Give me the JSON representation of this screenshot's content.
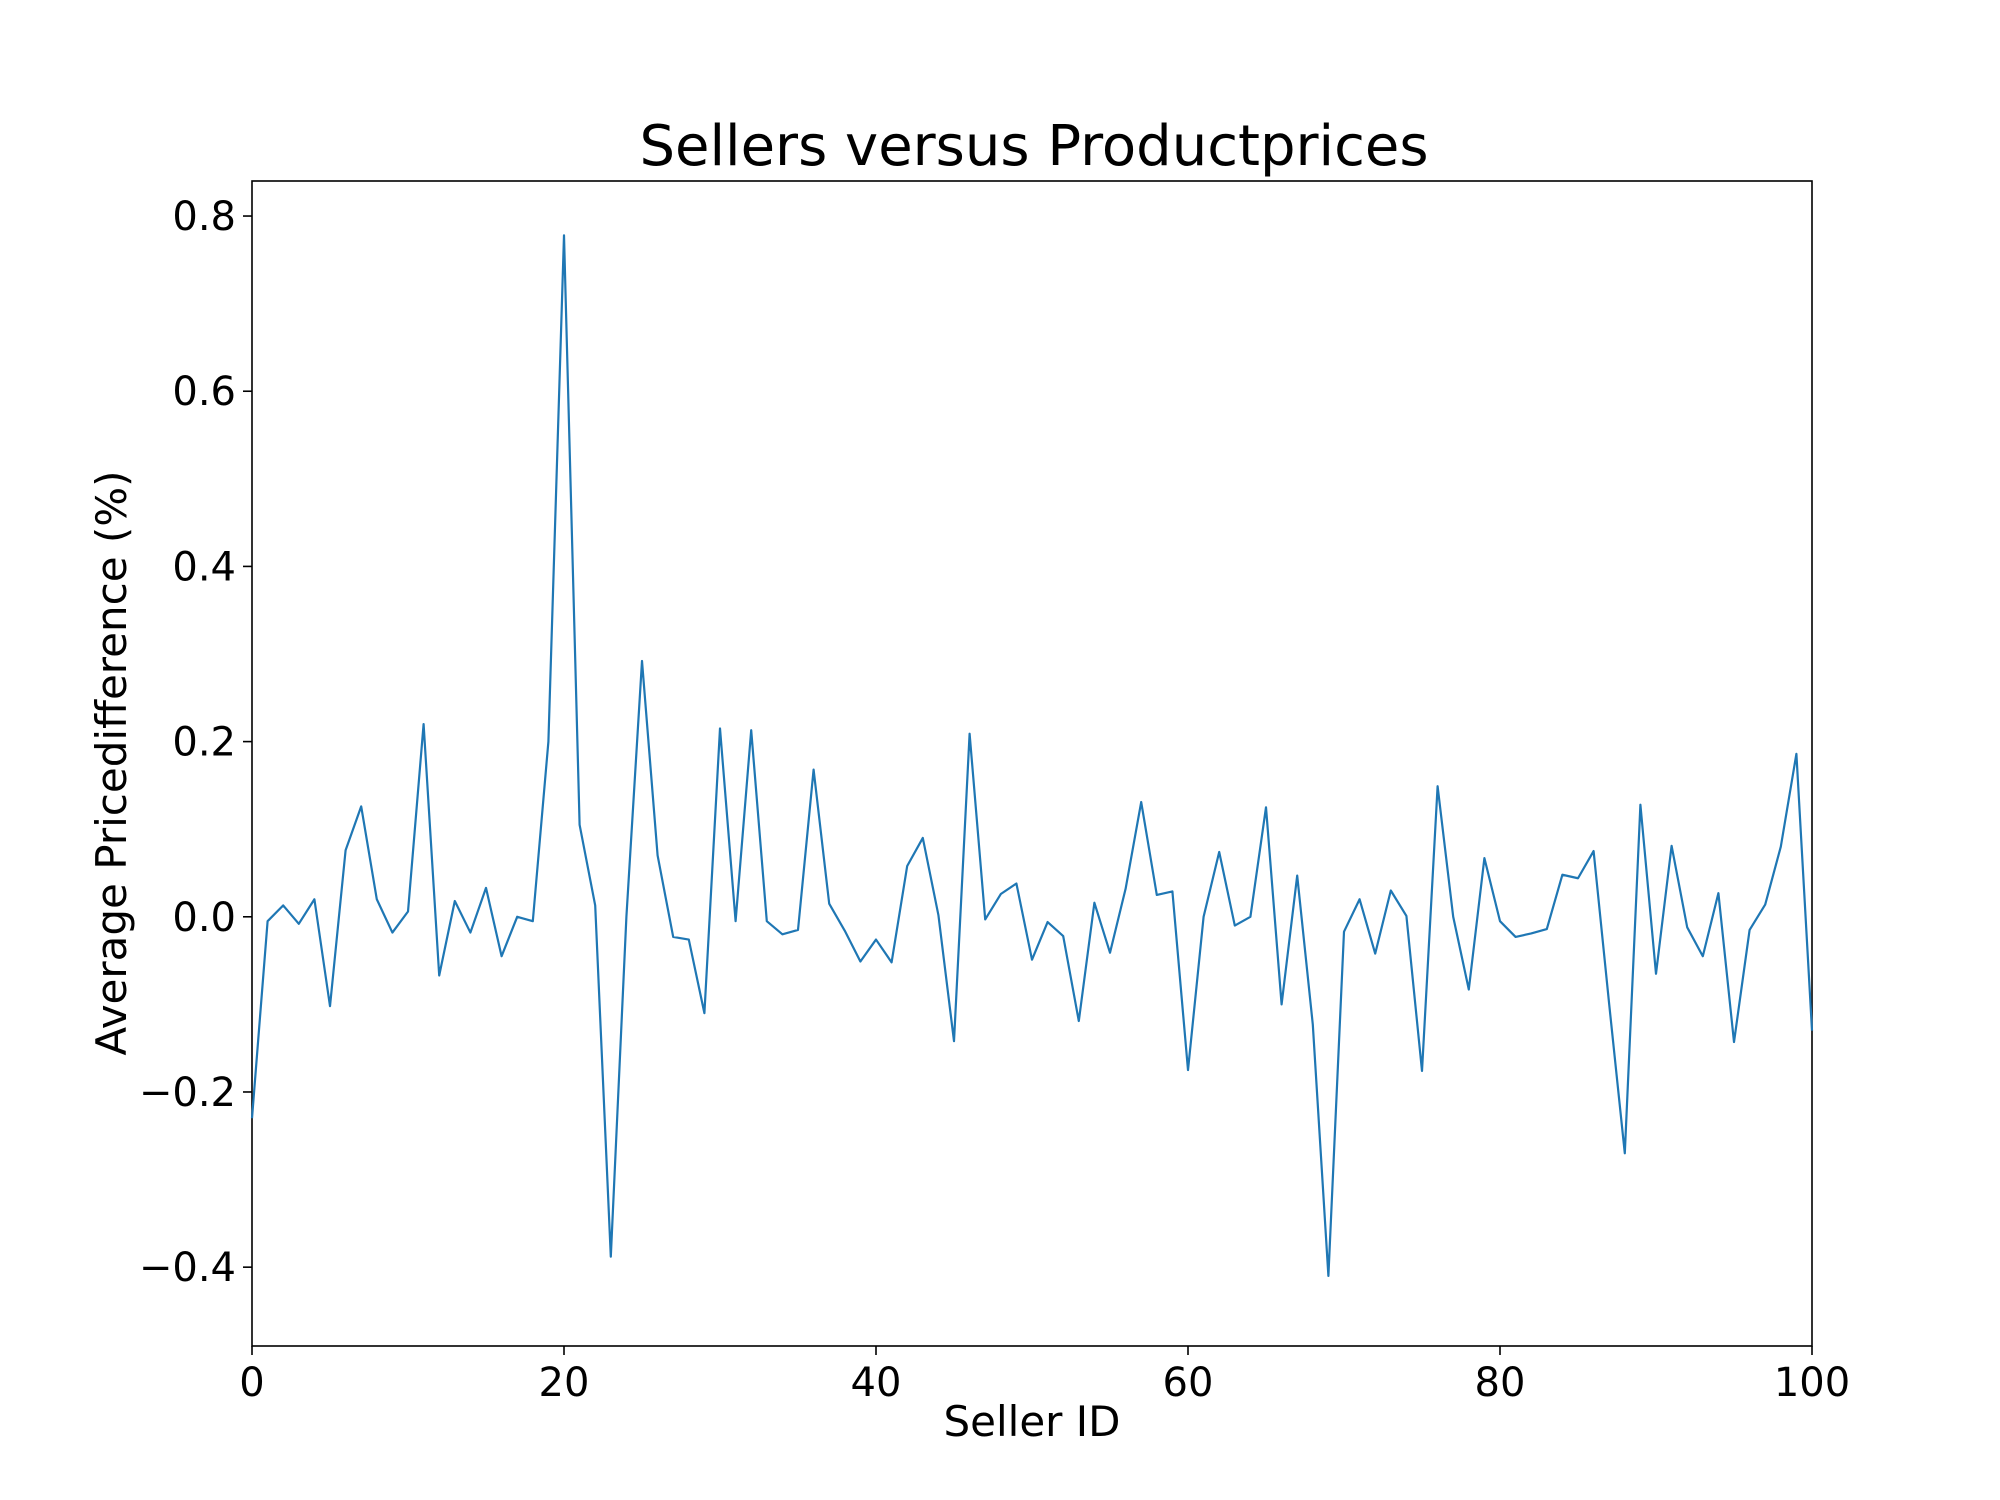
{
  "chart_data": {
    "type": "line",
    "title": "Sellers versus Productprices",
    "xlabel": "Seller ID",
    "ylabel": "Average Pricedifference (%)",
    "xlim": [
      0,
      100
    ],
    "ylim": [
      -0.49,
      0.84
    ],
    "xticks": [
      0,
      20,
      40,
      60,
      80,
      100
    ],
    "xtick_labels": [
      "0",
      "20",
      "40",
      "60",
      "80",
      "100"
    ],
    "yticks": [
      -0.4,
      -0.2,
      0.0,
      0.2,
      0.4,
      0.6,
      0.8
    ],
    "ytick_labels": [
      "−0.4",
      "−0.2",
      "0.0",
      "0.2",
      "0.4",
      "0.6",
      "0.8"
    ],
    "grid": false,
    "series": [
      {
        "color": "#1f77b4",
        "x": [
          0,
          1,
          2,
          3,
          4,
          5,
          6,
          7,
          8,
          9,
          10,
          11,
          12,
          13,
          14,
          15,
          16,
          17,
          18,
          19,
          20,
          21,
          22,
          23,
          24,
          25,
          26,
          27,
          28,
          29,
          30,
          31,
          32,
          33,
          34,
          35,
          36,
          37,
          38,
          39,
          40,
          41,
          42,
          43,
          44,
          45,
          46,
          47,
          48,
          49,
          50,
          51,
          52,
          53,
          54,
          55,
          56,
          57,
          58,
          59,
          60,
          61,
          62,
          63,
          64,
          65,
          66,
          67,
          68,
          69,
          70,
          71,
          72,
          73,
          74,
          75,
          76,
          77,
          78,
          79,
          80,
          81,
          82,
          83,
          84,
          85,
          86,
          87,
          88,
          89,
          90,
          91,
          92,
          93,
          94,
          95,
          96,
          97,
          98,
          99,
          100
        ],
        "y": [
          -0.23,
          -0.005,
          0.013,
          -0.008,
          0.02,
          -0.102,
          0.076,
          0.126,
          0.02,
          -0.018,
          0.006,
          0.22,
          -0.067,
          0.018,
          -0.018,
          0.033,
          -0.045,
          0.0,
          -0.005,
          0.2,
          0.778,
          0.105,
          0.013,
          -0.388,
          0.0,
          0.292,
          0.07,
          -0.023,
          -0.026,
          -0.11,
          0.215,
          -0.005,
          0.213,
          -0.005,
          -0.02,
          -0.015,
          0.168,
          0.015,
          -0.016,
          -0.051,
          -0.026,
          -0.052,
          0.058,
          0.09,
          0.002,
          -0.142,
          0.209,
          -0.003,
          0.026,
          0.038,
          -0.049,
          -0.006,
          -0.022,
          -0.119,
          0.016,
          -0.041,
          0.032,
          0.131,
          0.025,
          0.029,
          -0.175,
          0.0,
          0.074,
          -0.01,
          0.0,
          0.125,
          -0.1,
          0.047,
          -0.123,
          -0.41,
          -0.017,
          0.02,
          -0.042,
          0.03,
          0.001,
          -0.176,
          0.149,
          0.0,
          -0.083,
          0.067,
          -0.005,
          -0.023,
          -0.019,
          -0.014,
          0.048,
          0.044,
          0.075,
          -0.1,
          -0.27,
          0.128,
          -0.065,
          0.081,
          -0.012,
          -0.045,
          0.027,
          -0.143,
          -0.015,
          0.014,
          0.08,
          0.186,
          -0.13
        ]
      }
    ]
  }
}
